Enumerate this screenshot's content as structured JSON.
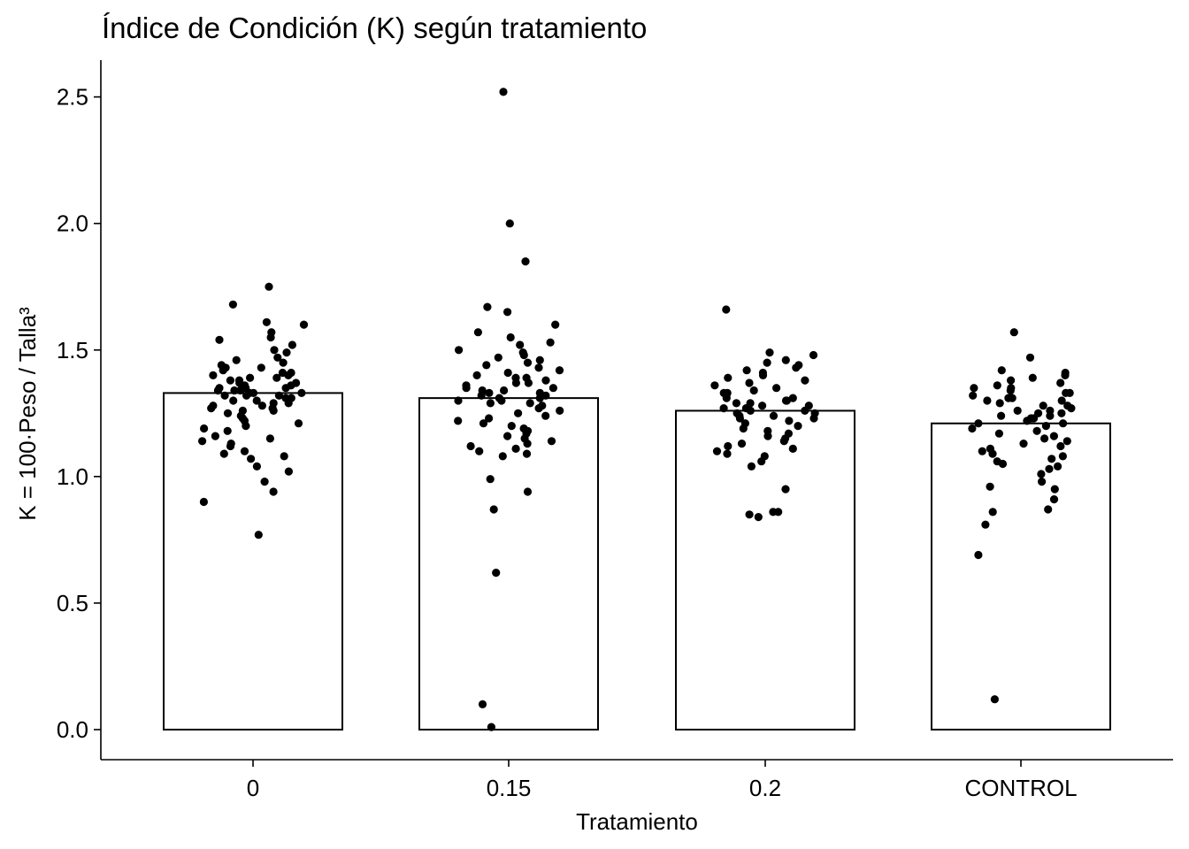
{
  "chart_data": {
    "type": "bar",
    "title": "Índice de Condición (K) según tratamiento",
    "xlabel": "Tratamiento",
    "ylabel": "K = 100·Peso / Talla³",
    "categories": [
      "0",
      "0.15",
      "0.2",
      "CONTROL"
    ],
    "values": [
      1.33,
      1.31,
      1.26,
      1.21
    ],
    "ylim": [
      -0.06,
      2.65
    ],
    "yticks": [
      0.0,
      0.5,
      1.0,
      1.5,
      2.0,
      2.5
    ],
    "ytick_labels": [
      "0.0",
      "0.5",
      "1.0",
      "1.5",
      "2.0",
      "2.5"
    ],
    "grid": false,
    "overlay": "jittered-points",
    "points": [
      {
        "category": "0",
        "values": [
          1.75,
          1.68,
          1.61,
          1.6,
          1.57,
          1.55,
          1.54,
          1.52,
          1.5,
          1.49,
          1.47,
          1.46,
          1.45,
          1.44,
          1.43,
          1.43,
          1.42,
          1.41,
          1.41,
          1.4,
          1.4,
          1.39,
          1.39,
          1.38,
          1.38,
          1.37,
          1.37,
          1.36,
          1.36,
          1.35,
          1.35,
          1.35,
          1.34,
          1.34,
          1.34,
          1.33,
          1.33,
          1.33,
          1.32,
          1.32,
          1.32,
          1.31,
          1.31,
          1.3,
          1.3,
          1.29,
          1.29,
          1.28,
          1.28,
          1.27,
          1.27,
          1.26,
          1.26,
          1.25,
          1.24,
          1.23,
          1.22,
          1.21,
          1.2,
          1.19,
          1.18,
          1.16,
          1.15,
          1.14,
          1.13,
          1.12,
          1.1,
          1.09,
          1.08,
          1.07,
          1.04,
          1.02,
          0.98,
          0.94,
          0.9,
          0.77
        ]
      },
      {
        "category": "0.15",
        "values": [
          2.52,
          2.0,
          1.85,
          1.67,
          1.65,
          1.6,
          1.57,
          1.55,
          1.53,
          1.52,
          1.5,
          1.49,
          1.48,
          1.47,
          1.46,
          1.45,
          1.44,
          1.43,
          1.42,
          1.41,
          1.4,
          1.39,
          1.39,
          1.38,
          1.37,
          1.37,
          1.36,
          1.35,
          1.35,
          1.34,
          1.34,
          1.33,
          1.33,
          1.32,
          1.32,
          1.31,
          1.31,
          1.3,
          1.3,
          1.29,
          1.29,
          1.28,
          1.27,
          1.26,
          1.25,
          1.24,
          1.23,
          1.22,
          1.21,
          1.2,
          1.19,
          1.18,
          1.17,
          1.16,
          1.15,
          1.14,
          1.13,
          1.12,
          1.11,
          1.1,
          1.09,
          1.08,
          0.99,
          0.94,
          0.87,
          0.62,
          0.1,
          0.01
        ]
      },
      {
        "category": "0.2",
        "values": [
          1.66,
          1.49,
          1.48,
          1.46,
          1.45,
          1.44,
          1.43,
          1.42,
          1.41,
          1.4,
          1.39,
          1.38,
          1.37,
          1.36,
          1.35,
          1.34,
          1.33,
          1.33,
          1.32,
          1.31,
          1.31,
          1.3,
          1.3,
          1.29,
          1.29,
          1.28,
          1.28,
          1.27,
          1.27,
          1.26,
          1.26,
          1.25,
          1.25,
          1.24,
          1.24,
          1.23,
          1.23,
          1.22,
          1.21,
          1.2,
          1.19,
          1.18,
          1.17,
          1.16,
          1.15,
          1.14,
          1.13,
          1.12,
          1.11,
          1.1,
          1.09,
          1.08,
          1.06,
          1.04,
          0.95,
          0.86,
          0.86,
          0.85,
          0.84
        ]
      },
      {
        "category": "CONTROL",
        "values": [
          1.57,
          1.47,
          1.42,
          1.41,
          1.4,
          1.39,
          1.38,
          1.37,
          1.36,
          1.35,
          1.35,
          1.34,
          1.33,
          1.33,
          1.32,
          1.31,
          1.31,
          1.3,
          1.3,
          1.29,
          1.28,
          1.28,
          1.27,
          1.26,
          1.26,
          1.25,
          1.25,
          1.24,
          1.24,
          1.23,
          1.23,
          1.22,
          1.21,
          1.21,
          1.2,
          1.19,
          1.18,
          1.17,
          1.16,
          1.15,
          1.14,
          1.13,
          1.12,
          1.11,
          1.1,
          1.09,
          1.08,
          1.07,
          1.06,
          1.05,
          1.04,
          1.03,
          1.01,
          0.98,
          0.96,
          0.95,
          0.91,
          0.87,
          0.86,
          0.81,
          0.69,
          0.12
        ]
      }
    ]
  }
}
